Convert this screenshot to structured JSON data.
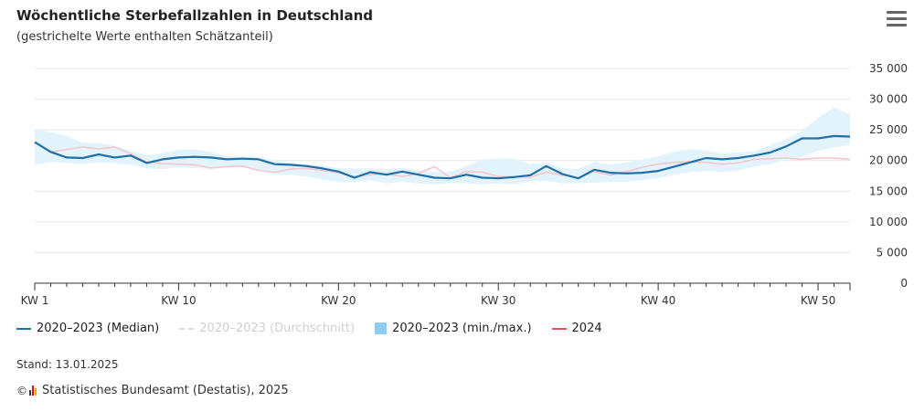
{
  "header": {
    "title": "Wöchentliche Sterbefallzahlen in Deutschland",
    "subtitle": "(gestrichelte Werte enthalten Schätzanteil)"
  },
  "menu_icon": "hamburger-menu-icon",
  "legend": [
    {
      "label": "2020–2023 (Median)",
      "color": "#1f6fa8",
      "kind": "line",
      "active": true
    },
    {
      "label": "2020–2023 (Durchschnitt)",
      "color": "#dcdcdc",
      "kind": "dash",
      "active": false
    },
    {
      "label": "2020–2023 (min./max.)",
      "color": "#8ecdf2",
      "kind": "rect",
      "active": true
    },
    {
      "label": "2024",
      "color": "#e8505b",
      "kind": "line",
      "active": true
    }
  ],
  "footer": {
    "stand": "Stand: 13.01.2025",
    "copyright": "©",
    "source": "Statistisches Bundesamt (Destatis), 2025"
  },
  "chart_data": {
    "type": "line",
    "xlabel": "",
    "ylabel": "",
    "ylim": [
      0,
      35000
    ],
    "yticks": [
      0,
      5000,
      10000,
      15000,
      20000,
      25000,
      30000,
      35000
    ],
    "ytick_labels": [
      "0",
      "5 000",
      "10 000",
      "15 000",
      "20 000",
      "25 000",
      "30 000",
      "35 000"
    ],
    "xlim": [
      1,
      52
    ],
    "xticks": [
      1,
      10,
      20,
      30,
      40,
      50
    ],
    "xtick_labels": [
      "KW 1",
      "KW 10",
      "KW 20",
      "KW 30",
      "KW 40",
      "KW 50"
    ],
    "grid": true,
    "legend_position": "bottom",
    "series": [
      {
        "name": "2020–2023 (Median)",
        "color": "#1f6fa8",
        "values": [
          23000,
          21400,
          20500,
          20400,
          21000,
          20500,
          20800,
          19600,
          20200,
          20500,
          20600,
          20500,
          20200,
          20300,
          20200,
          19400,
          19300,
          19100,
          18700,
          18200,
          17200,
          18100,
          17700,
          18200,
          17700,
          17200,
          17100,
          17700,
          17200,
          17100,
          17300,
          17600,
          19100,
          17800,
          17100,
          18500,
          18000,
          17900,
          18000,
          18300,
          19000,
          19700,
          20400,
          20200,
          20400,
          20800,
          21300,
          22300,
          23600,
          23600,
          24000,
          23900
        ]
      },
      {
        "name": "2024",
        "color": "#e8505b",
        "values": [
          22900,
          21400,
          21800,
          22200,
          21900,
          22200,
          21100,
          19800,
          19500,
          19400,
          19300,
          18800,
          19000,
          19100,
          18400,
          18100,
          18600,
          18700,
          18400,
          18000,
          17400,
          17700,
          17800,
          17400,
          17900,
          19000,
          17200,
          18200,
          18100,
          17400,
          17300,
          17300,
          18100,
          17600,
          17200,
          18200,
          17600,
          18200,
          18900,
          19400,
          19700,
          19800,
          19700,
          19400,
          19600,
          20200,
          20300,
          20400,
          20200,
          20400,
          20400,
          20200
        ]
      },
      {
        "name": "2020–2023 (min./max.)",
        "color": "#8ecdf2",
        "min": [
          19300,
          19800,
          19600,
          19400,
          19700,
          19600,
          19300,
          18700,
          18600,
          18900,
          18800,
          18600,
          18900,
          18900,
          18600,
          17700,
          17700,
          17400,
          16900,
          16400,
          16500,
          16800,
          16300,
          16500,
          16300,
          16100,
          16300,
          16300,
          16100,
          16300,
          16100,
          16600,
          16700,
          16300,
          16300,
          16400,
          16500,
          16500,
          16800,
          17100,
          17700,
          18100,
          18300,
          18100,
          18400,
          19000,
          19400,
          20100,
          20600,
          21600,
          22100,
          22600
        ],
        "max": [
          25200,
          24600,
          24000,
          22900,
          22900,
          22400,
          21600,
          20900,
          21200,
          21800,
          21800,
          21400,
          20700,
          20700,
          20600,
          20100,
          19600,
          19400,
          19200,
          18800,
          18700,
          18700,
          18600,
          18800,
          18400,
          18200,
          18200,
          19100,
          20200,
          20300,
          20300,
          19400,
          19700,
          18800,
          18600,
          19800,
          19300,
          19700,
          20200,
          20700,
          21400,
          21900,
          21600,
          21200,
          21300,
          21500,
          22500,
          23500,
          24800,
          27000,
          28600,
          27600
        ]
      }
    ]
  }
}
